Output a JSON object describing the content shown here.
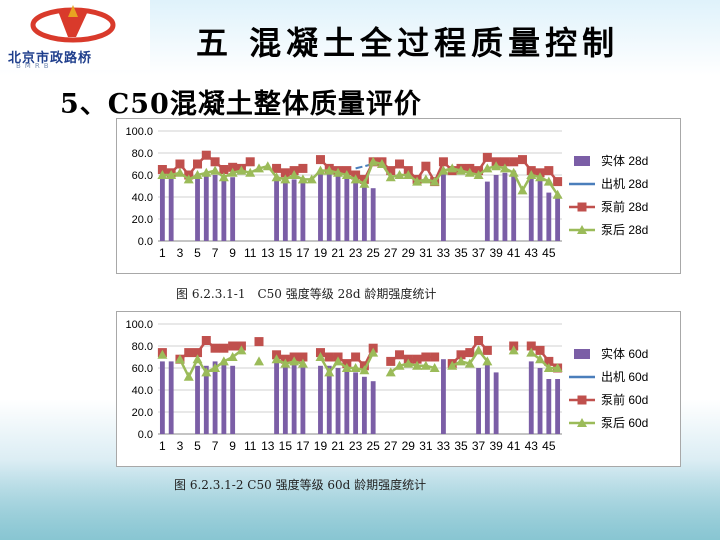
{
  "logo": {
    "text": "北京市政路桥",
    "sub": "BMRB"
  },
  "header": {
    "title": "五 混凝土全过程质量控制",
    "subtitle": "5、C50混凝土整体质量评价"
  },
  "captions": {
    "chart1": "图 6.2.3.1-1　C50 强度等级 28d 龄期强度统计",
    "chart2": "图 6.2.3.1-2 C50 强度等级 60d 龄期强度统计"
  },
  "colors": {
    "bar": "#7b5ea6",
    "outlet": "#4a7ebb",
    "prepump": "#c0504d",
    "postpump": "#9bbb59"
  },
  "chart_data": [
    {
      "type": "bar",
      "title": "",
      "xlabel": "",
      "ylabel": "",
      "ylim": [
        0,
        100
      ],
      "yticks": [
        "0.0",
        "20.0",
        "40.0",
        "60.0",
        "80.0",
        "100.0"
      ],
      "x": [
        1,
        2,
        3,
        4,
        5,
        6,
        7,
        8,
        9,
        10,
        11,
        12,
        13,
        14,
        15,
        16,
        17,
        18,
        19,
        20,
        21,
        22,
        23,
        24,
        25,
        26,
        27,
        28,
        29,
        30,
        31,
        32,
        33,
        34,
        35,
        36,
        37,
        38,
        39,
        40,
        41,
        42,
        43,
        44,
        45,
        46
      ],
      "xticks": [
        "1",
        "3",
        "5",
        "7",
        "9",
        "11",
        "13",
        "15",
        "17",
        "19",
        "21",
        "23",
        "25",
        "27",
        "29",
        "31",
        "33",
        "35",
        "37",
        "39",
        "41",
        "43",
        "45"
      ],
      "series": [
        {
          "name": "实体 28d",
          "kind": "bar",
          "values": [
            62,
            64,
            null,
            null,
            61,
            62,
            60,
            56,
            58,
            null,
            null,
            null,
            null,
            58,
            54,
            56,
            55,
            null,
            62,
            62,
            60,
            58,
            57,
            52,
            48,
            null,
            null,
            null,
            null,
            null,
            null,
            null,
            64,
            null,
            null,
            null,
            null,
            54,
            60,
            62,
            64,
            null,
            60,
            58,
            44,
            42
          ]
        },
        {
          "name": "出机 28d",
          "kind": "line",
          "values": [
            null,
            null,
            null,
            null,
            null,
            null,
            null,
            null,
            null,
            null,
            null,
            null,
            null,
            null,
            null,
            null,
            null,
            null,
            null,
            null,
            null,
            null,
            66,
            68,
            70,
            null,
            null,
            null,
            null,
            null,
            null,
            null,
            null,
            null,
            null,
            null,
            null,
            null,
            null,
            null,
            null,
            null,
            null,
            null,
            null,
            null
          ]
        },
        {
          "name": "泵前 28d",
          "kind": "line",
          "values": [
            65,
            62,
            70,
            60,
            70,
            78,
            72,
            65,
            67,
            66,
            72,
            null,
            null,
            66,
            62,
            64,
            66,
            null,
            74,
            66,
            64,
            64,
            60,
            56,
            72,
            72,
            64,
            70,
            64,
            56,
            68,
            54,
            72,
            64,
            66,
            66,
            64,
            76,
            72,
            72,
            72,
            74,
            64,
            62,
            64,
            54
          ]
        },
        {
          "name": "泵后 28d",
          "kind": "line",
          "values": [
            60,
            60,
            62,
            56,
            60,
            62,
            64,
            58,
            62,
            64,
            62,
            66,
            68,
            58,
            56,
            60,
            56,
            56,
            64,
            64,
            62,
            60,
            56,
            52,
            72,
            70,
            58,
            60,
            60,
            54,
            56,
            54,
            64,
            66,
            64,
            62,
            60,
            66,
            68,
            66,
            62,
            46,
            60,
            58,
            54,
            42
          ]
        }
      ]
    },
    {
      "type": "bar",
      "title": "",
      "xlabel": "",
      "ylabel": "",
      "ylim": [
        0,
        100
      ],
      "yticks": [
        "0.0",
        "20.0",
        "40.0",
        "60.0",
        "80.0",
        "100.0"
      ],
      "x": [
        1,
        2,
        3,
        4,
        5,
        6,
        7,
        8,
        9,
        10,
        11,
        12,
        13,
        14,
        15,
        16,
        17,
        18,
        19,
        20,
        21,
        22,
        23,
        24,
        25,
        26,
        27,
        28,
        29,
        30,
        31,
        32,
        33,
        34,
        35,
        36,
        37,
        38,
        39,
        40,
        41,
        42,
        43,
        44,
        45,
        46
      ],
      "xticks": [
        "1",
        "3",
        "5",
        "7",
        "9",
        "11",
        "13",
        "15",
        "17",
        "19",
        "21",
        "23",
        "25",
        "27",
        "29",
        "31",
        "33",
        "35",
        "37",
        "39",
        "41",
        "43",
        "45"
      ],
      "series": [
        {
          "name": "实体 60d",
          "kind": "bar",
          "values": [
            66,
            66,
            null,
            null,
            62,
            62,
            66,
            66,
            62,
            null,
            null,
            null,
            null,
            66,
            62,
            64,
            64,
            null,
            62,
            62,
            60,
            58,
            56,
            52,
            48,
            null,
            null,
            null,
            null,
            null,
            null,
            null,
            68,
            null,
            null,
            null,
            60,
            66,
            56,
            null,
            null,
            null,
            66,
            60,
            50,
            50
          ]
        },
        {
          "name": "出机 60d",
          "kind": "line",
          "values": [
            null,
            null,
            null,
            null,
            null,
            null,
            null,
            null,
            null,
            null,
            null,
            null,
            null,
            null,
            null,
            null,
            null,
            null,
            null,
            null,
            null,
            null,
            null,
            null,
            null,
            null,
            null,
            null,
            null,
            null,
            null,
            null,
            null,
            null,
            null,
            null,
            null,
            null,
            null,
            null,
            null,
            null,
            null,
            null,
            null,
            null
          ]
        },
        {
          "name": "泵前 60d",
          "kind": "line",
          "values": [
            74,
            null,
            68,
            74,
            74,
            85,
            78,
            78,
            80,
            80,
            null,
            84,
            null,
            72,
            68,
            70,
            70,
            null,
            74,
            70,
            70,
            64,
            70,
            62,
            78,
            null,
            66,
            72,
            68,
            68,
            70,
            70,
            null,
            64,
            72,
            74,
            85,
            76,
            null,
            null,
            80,
            null,
            80,
            76,
            66,
            60
          ]
        },
        {
          "name": "泵后 60d",
          "kind": "line",
          "values": [
            72,
            null,
            68,
            52,
            68,
            56,
            60,
            66,
            70,
            76,
            null,
            66,
            null,
            68,
            64,
            66,
            64,
            null,
            70,
            56,
            66,
            60,
            60,
            58,
            74,
            null,
            56,
            62,
            64,
            62,
            62,
            60,
            null,
            62,
            66,
            64,
            76,
            66,
            null,
            null,
            76,
            null,
            74,
            68,
            60,
            60
          ]
        }
      ]
    }
  ]
}
